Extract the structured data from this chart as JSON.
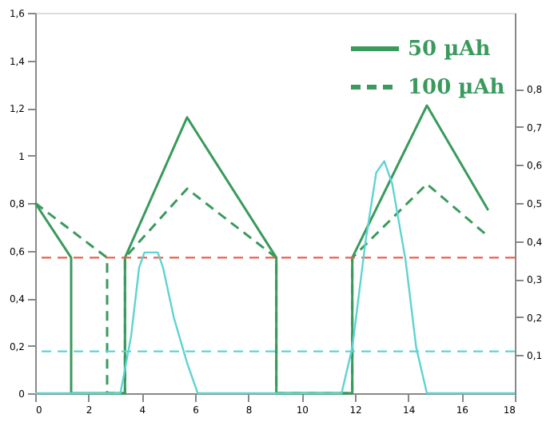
{
  "chart_data": {
    "type": "line",
    "xlim": [
      0,
      18
    ],
    "xticks": [
      0,
      2,
      4,
      6,
      8,
      10,
      12,
      14,
      16,
      18
    ],
    "ylim": [
      0,
      1.6
    ],
    "yticks": [
      0,
      {
        "value": 0.2,
        "label": "0,2"
      },
      {
        "value": 0.4,
        "label": "0,4"
      },
      {
        "value": 0.6,
        "label": "0,6"
      },
      {
        "value": 0.8,
        "label": "0,8"
      },
      1,
      {
        "value": 1.2,
        "label": "1,2"
      },
      {
        "value": 1.4,
        "label": "1,4"
      },
      {
        "value": 1.6,
        "label": "1,6"
      }
    ],
    "y2lim": [
      0,
      1
    ],
    "y2ticks": [
      {
        "value": 0.1,
        "label": "0,1"
      },
      {
        "value": 0.2,
        "label": "0,2"
      },
      {
        "value": 0.3,
        "label": "0,3"
      },
      {
        "value": 0.4,
        "label": "0,4"
      },
      {
        "value": 0.5,
        "label": "0,5"
      },
      {
        "value": 0.6,
        "label": "0,6"
      },
      {
        "value": 0.7,
        "label": "0,7"
      },
      {
        "value": 0.8,
        "label": "0,8"
      }
    ],
    "grid": false,
    "legend": "top right",
    "marker": "none",
    "series": [
      {
        "name": "50 µAh",
        "color": "#3a9a5c",
        "line_style": "solid",
        "x": [
          0,
          1.35,
          1.35,
          3.37,
          3.37,
          5.7,
          9.05,
          9.05,
          11.9,
          11.9,
          14.7,
          17.0
        ],
        "values": [
          0.8,
          0.57,
          0,
          0,
          0.57,
          1.16,
          0.57,
          0,
          0,
          0.57,
          1.21,
          0.77
        ]
      },
      {
        "name": "100 µAh",
        "color": "#3a9a5c",
        "line_style": "dashed",
        "x": [
          0,
          2.7,
          2.7,
          3.37,
          3.37,
          5.7,
          9.05,
          9.05,
          11.9,
          11.9,
          14.7,
          17.0
        ],
        "values": [
          0.8,
          0.57,
          0,
          0,
          0.57,
          0.86,
          0.57,
          0,
          0,
          0.57,
          0.88,
          0.66
        ]
      },
      {
        "color": "#5fd3d3",
        "line_style": "solid",
        "axis": "y2",
        "x": [
          0,
          3.2,
          3.6,
          3.9,
          4.1,
          4.6,
          4.8,
          5.2,
          5.7,
          6.1,
          11.5,
          11.9,
          12.4,
          12.8,
          13.1,
          13.4,
          13.9,
          14.3,
          14.7,
          18
        ],
        "values": [
          0,
          0,
          0.15,
          0.33,
          0.37,
          0.37,
          0.33,
          0.2,
          0.08,
          0,
          0,
          0.12,
          0.4,
          0.58,
          0.61,
          0.55,
          0.35,
          0.12,
          0,
          0
        ]
      }
    ],
    "ref_lines": [
      {
        "axis": "y",
        "value": 0.57,
        "color": "#e8604c",
        "line_style": "dashed"
      },
      {
        "axis": "y2",
        "value": 0.11,
        "color": "#5fd3d3",
        "line_style": "dashed"
      }
    ]
  }
}
